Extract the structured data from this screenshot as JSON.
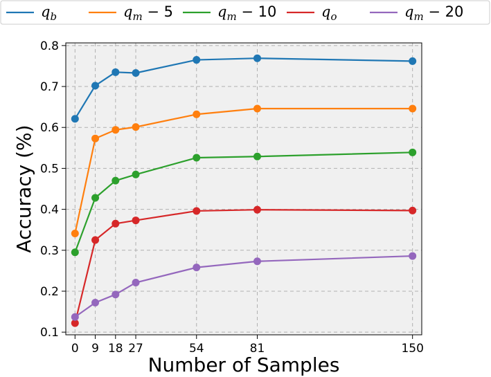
{
  "chart_data": {
    "type": "line",
    "title": "",
    "xlabel": "Number of Samples",
    "ylabel": "Accuracy (%)",
    "x": [
      0,
      9,
      18,
      27,
      54,
      81,
      150
    ],
    "x_tick_labels": [
      "0",
      "9",
      "18",
      "27",
      "54",
      "81",
      "150"
    ],
    "y_tick_labels": [
      "0.1",
      "0.2",
      "0.3",
      "0.4",
      "0.5",
      "0.6",
      "0.7",
      "0.8"
    ],
    "ylim": [
      0.1,
      0.8
    ],
    "grid": true,
    "legend_position": "top",
    "series": [
      {
        "name": "q_b",
        "legend_base": "q",
        "legend_sub": "b",
        "legend_suffix": "",
        "color": "#1f77b4",
        "values": [
          0.621,
          0.702,
          0.735,
          0.733,
          0.765,
          0.769,
          0.762
        ]
      },
      {
        "name": "q_m − 5",
        "legend_base": "q",
        "legend_sub": "m",
        "legend_suffix": " − 5",
        "color": "#ff7f0e",
        "values": [
          0.341,
          0.573,
          0.594,
          0.601,
          0.632,
          0.646,
          0.646
        ]
      },
      {
        "name": "q_m − 10",
        "legend_base": "q",
        "legend_sub": "m",
        "legend_suffix": " − 10",
        "color": "#2ca02c",
        "values": [
          0.295,
          0.428,
          0.47,
          0.485,
          0.526,
          0.529,
          0.539
        ]
      },
      {
        "name": "q_o",
        "legend_base": "q",
        "legend_sub": "o",
        "legend_suffix": "",
        "color": "#d62728",
        "values": [
          0.122,
          0.325,
          0.365,
          0.373,
          0.396,
          0.399,
          0.397
        ]
      },
      {
        "name": "q_m − 20",
        "legend_base": "q",
        "legend_sub": "m",
        "legend_suffix": " − 20",
        "color": "#9467bd",
        "values": [
          0.137,
          0.172,
          0.192,
          0.221,
          0.258,
          0.273,
          0.286
        ]
      }
    ]
  }
}
